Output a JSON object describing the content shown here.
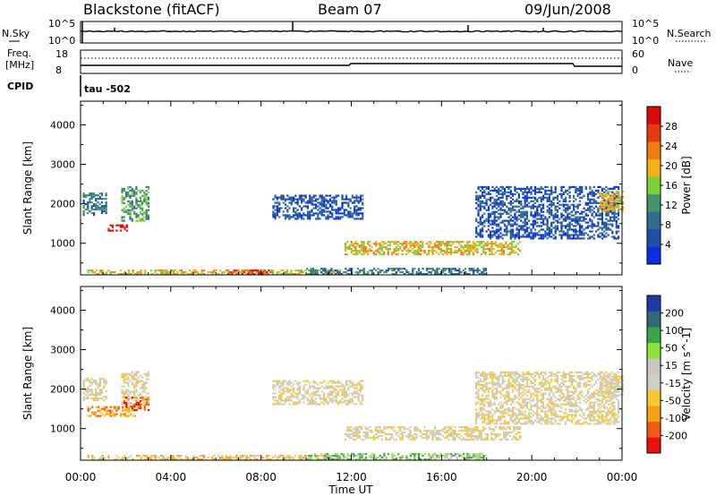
{
  "header": {
    "station": "Blackstone (fitACF)",
    "beam": "Beam 07",
    "date": "09/Jun/2008"
  },
  "noise_panel": {
    "left_label": "N.Sky",
    "left_ticks": [
      "10^5",
      "10^0"
    ],
    "right_ticks": [
      "10^5",
      "10^0"
    ],
    "right_label": "N.Search"
  },
  "freq_panel": {
    "left_label_line1": "Freq.",
    "left_label_line2": "[MHz]",
    "left_ticks": [
      "18",
      "8"
    ],
    "right_ticks": [
      "60",
      "0"
    ],
    "right_label": "Nave"
  },
  "cpid_panel": {
    "label": "CPID",
    "text": "tau  -502"
  },
  "colors": {
    "power": [
      "#0a2ee6",
      "#1d4fa8",
      "#2f6e8e",
      "#44946a",
      "#7fd13a",
      "#f2b21a",
      "#f07d12",
      "#e83a12",
      "#d80a0a"
    ],
    "velocity": [
      "#e81010",
      "#f05a14",
      "#f6a018",
      "#f8c830",
      "#cfcfc4",
      "#c8c8c0",
      "#8fe23a",
      "#3aa84a",
      "#2e6a7a",
      "#1e3aa8"
    ]
  },
  "time_axis": {
    "title": "Time UT",
    "ticks": [
      "00:00",
      "04:00",
      "08:00",
      "12:00",
      "16:00",
      "20:00",
      "00:00"
    ]
  },
  "chart_data": [
    {
      "type": "heatmap",
      "name": "power",
      "ylabel": "Slant Range [km]",
      "yticks": [
        "1000",
        "2000",
        "3000",
        "4000"
      ],
      "ylim": [
        200,
        4600
      ],
      "xlim_hours": [
        0,
        24
      ],
      "colorbar_label": "Power [dB]",
      "colorbar_ticks": [
        "4",
        "8",
        "12",
        "16",
        "20",
        "24",
        "28"
      ],
      "colorbar_range": [
        0,
        32
      ],
      "regions": [
        {
          "t0": 0.1,
          "t1": 1.1,
          "r0": 1700,
          "r1": 2250,
          "level": 2
        },
        {
          "t0": 1.2,
          "t1": 2.1,
          "r0": 1300,
          "r1": 1450,
          "level": 8
        },
        {
          "t0": 1.8,
          "t1": 3.0,
          "r0": 1550,
          "r1": 2450,
          "level": 3
        },
        {
          "t0": 0.3,
          "t1": 11.5,
          "r0": 200,
          "r1": 330,
          "level": 5
        },
        {
          "t0": 6.5,
          "t1": 8.5,
          "r0": 200,
          "r1": 330,
          "level": 7
        },
        {
          "t0": 10.0,
          "t1": 18.0,
          "r0": 200,
          "r1": 380,
          "level": 2
        },
        {
          "t0": 11.7,
          "t1": 19.5,
          "r0": 700,
          "r1": 1050,
          "level": 5
        },
        {
          "t0": 8.5,
          "t1": 12.5,
          "r0": 1600,
          "r1": 2200,
          "level": 1
        },
        {
          "t0": 17.5,
          "t1": 23.8,
          "r0": 1100,
          "r1": 2450,
          "level": 1
        },
        {
          "t0": 23.0,
          "t1": 24.0,
          "r0": 1800,
          "r1": 2300,
          "level": 5
        }
      ]
    },
    {
      "type": "heatmap",
      "name": "velocity",
      "ylabel": "Slant Range [km]",
      "yticks": [
        "1000",
        "2000",
        "3000",
        "4000"
      ],
      "ylim": [
        200,
        4600
      ],
      "xlim_hours": [
        0,
        24
      ],
      "colorbar_label": "Velocity [m s^-1]",
      "colorbar_ticks": [
        "-200",
        "-100",
        "-50",
        "-15",
        "15",
        "50",
        "100",
        "200"
      ],
      "colorbar_range": [
        -250,
        250
      ],
      "regions": [
        {
          "t0": 0.1,
          "t1": 1.1,
          "r0": 1700,
          "r1": 2250,
          "level": 4
        },
        {
          "t0": 0.3,
          "t1": 2.4,
          "r0": 1300,
          "r1": 1550,
          "level": 2
        },
        {
          "t0": 1.8,
          "t1": 3.0,
          "r0": 1600,
          "r1": 2450,
          "level": 4
        },
        {
          "t0": 1.9,
          "t1": 3.0,
          "r0": 1450,
          "r1": 1800,
          "level": 1
        },
        {
          "t0": 0.3,
          "t1": 11.5,
          "r0": 200,
          "r1": 330,
          "level": 3
        },
        {
          "t0": 10.0,
          "t1": 18.0,
          "r0": 200,
          "r1": 380,
          "level": 6
        },
        {
          "t0": 11.7,
          "t1": 19.5,
          "r0": 700,
          "r1": 1050,
          "level": 4
        },
        {
          "t0": 8.5,
          "t1": 12.5,
          "r0": 1600,
          "r1": 2200,
          "level": 4
        },
        {
          "t0": 17.5,
          "t1": 23.8,
          "r0": 1100,
          "r1": 2450,
          "level": 4
        },
        {
          "t0": 23.0,
          "t1": 24.0,
          "r0": 1800,
          "r1": 2300,
          "level": 4
        }
      ]
    }
  ]
}
